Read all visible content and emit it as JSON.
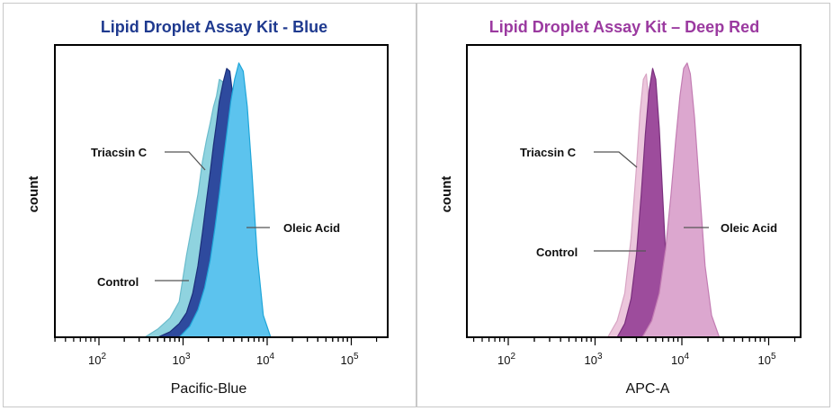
{
  "chart_data": [
    {
      "type": "area",
      "title": "Lipid Droplet Assay Kit - Blue",
      "title_color": "#1f3a8f",
      "xlabel": "Pacific-Blue",
      "ylabel": "count",
      "x_scale": "log",
      "xlim": [
        300,
        90000
      ],
      "x_ticks": [
        {
          "value": 100,
          "base": "10",
          "exp": "2"
        },
        {
          "value": 1000,
          "base": "10",
          "exp": "3"
        },
        {
          "value": 10000,
          "base": "10",
          "exp": "4"
        },
        {
          "value": 100000,
          "base": "10",
          "exp": "5"
        }
      ],
      "ylim": [
        0,
        100
      ],
      "grid": false,
      "series": [
        {
          "name": "Triacsin C",
          "fill": "#8fd3df",
          "stroke": "#6bbccc",
          "x": [
            350,
            500,
            700,
            900,
            1100,
            1300,
            1500,
            1700,
            1900,
            2100,
            2300,
            2500,
            2700,
            3000,
            3300,
            3700,
            4100,
            4600,
            5000
          ],
          "y": [
            0,
            3,
            7,
            13,
            30,
            42,
            52,
            64,
            72,
            78,
            84,
            88,
            94,
            93,
            84,
            60,
            30,
            8,
            0
          ]
        },
        {
          "name": "Control",
          "fill": "#2e4a9e",
          "stroke": "#1c2f7a",
          "x": [
            500,
            700,
            900,
            1100,
            1300,
            1500,
            1700,
            1900,
            2100,
            2300,
            2500,
            2700,
            3000,
            3300,
            3600,
            3900,
            4300,
            4800,
            5500,
            6500
          ],
          "y": [
            0,
            2,
            5,
            9,
            16,
            26,
            38,
            50,
            60,
            70,
            78,
            86,
            93,
            98,
            97,
            88,
            65,
            35,
            10,
            0
          ]
        },
        {
          "name": "Oleic Acid",
          "fill": "#5cc3ee",
          "stroke": "#1fa6d9",
          "x": [
            900,
            1200,
            1500,
            1800,
            2100,
            2400,
            2700,
            3000,
            3300,
            3700,
            4100,
            4600,
            5200,
            5800,
            6600,
            7600,
            9000,
            11000
          ],
          "y": [
            0,
            4,
            10,
            18,
            28,
            40,
            52,
            64,
            74,
            86,
            94,
            100,
            97,
            84,
            60,
            30,
            8,
            0
          ]
        }
      ],
      "annotations": [
        {
          "text": "Triacsin C",
          "target_series": "Triacsin C"
        },
        {
          "text": "Control",
          "target_series": "Control"
        },
        {
          "text": "Oleic Acid",
          "target_series": "Oleic Acid"
        }
      ]
    },
    {
      "type": "area",
      "title": "Lipid Droplet Assay Kit – Deep Red",
      "title_color": "#9b3aa0",
      "xlabel": "APC-A",
      "ylabel": "count",
      "x_scale": "log",
      "xlim": [
        300,
        90000
      ],
      "x_ticks": [
        {
          "value": 100,
          "base": "10",
          "exp": "2"
        },
        {
          "value": 1000,
          "base": "10",
          "exp": "3"
        },
        {
          "value": 10000,
          "base": "10",
          "exp": "4"
        },
        {
          "value": 100000,
          "base": "10",
          "exp": "5"
        }
      ],
      "ylim": [
        0,
        100
      ],
      "grid": false,
      "series": [
        {
          "name": "Triacsin C",
          "fill": "#ecc6dc",
          "stroke": "#d8a5c4",
          "x": [
            1400,
            1800,
            2200,
            2600,
            3000,
            3300,
            3600,
            3900,
            4200,
            4600,
            5000,
            5500,
            6200
          ],
          "y": [
            0,
            6,
            16,
            36,
            62,
            82,
            94,
            96,
            84,
            58,
            30,
            8,
            0
          ]
        },
        {
          "name": "Control",
          "fill": "#9d4c9c",
          "stroke": "#7a2f7d",
          "x": [
            1800,
            2200,
            2600,
            3000,
            3400,
            3800,
            4200,
            4600,
            5000,
            5500,
            6000,
            6600,
            7400,
            8200
          ],
          "y": [
            0,
            5,
            14,
            30,
            52,
            74,
            90,
            98,
            94,
            76,
            52,
            26,
            6,
            0
          ]
        },
        {
          "name": "Oleic Acid",
          "fill": "#dca7cf",
          "stroke": "#c37db3",
          "x": [
            3500,
            4500,
            5500,
            6500,
            7500,
            8500,
            9500,
            10500,
            11500,
            12500,
            14000,
            16000,
            18500,
            22000,
            27000
          ],
          "y": [
            0,
            6,
            16,
            32,
            52,
            72,
            88,
            98,
            100,
            96,
            80,
            54,
            26,
            8,
            0
          ]
        }
      ],
      "annotations": [
        {
          "text": "Triacsin C",
          "target_series": "Triacsin C"
        },
        {
          "text": "Control",
          "target_series": "Control"
        },
        {
          "text": "Oleic Acid",
          "target_series": "Oleic Acid"
        }
      ]
    }
  ]
}
